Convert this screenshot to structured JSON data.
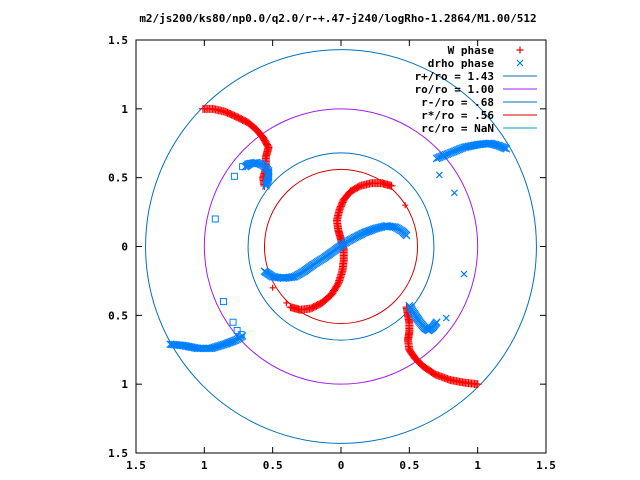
{
  "chart_data": {
    "type": "scatter",
    "title": "m2/js200/ks80/np0.0/q2.0/r-+.47-j240/logRho-1.2864/M1.00/512",
    "xlabel": "",
    "ylabel": "",
    "xlim": [
      -1.5,
      1.5
    ],
    "ylim": [
      -1.5,
      1.5
    ],
    "x_ticks": [
      "1.5",
      "1",
      "0.5",
      "0",
      "0.5",
      "1",
      "1.5"
    ],
    "y_ticks": [
      "1.5",
      "1",
      "0.5",
      "0",
      "0.5",
      "1",
      "1.5"
    ],
    "x_tick_values": [
      -1.5,
      -1,
      -0.5,
      0,
      0.5,
      1,
      1.5
    ],
    "y_tick_values": [
      1.5,
      1,
      0.5,
      0,
      -0.5,
      -1,
      -1.5
    ],
    "grid": false,
    "legend_position": "top-right",
    "series": [
      {
        "name": "W phase",
        "kind": "points",
        "marker": "plus",
        "color": "#ff0000",
        "arms": [
          {
            "x": [
              -1.01,
              -0.94,
              -0.85,
              -0.76,
              -0.68,
              -0.62,
              -0.57,
              -0.53,
              -0.55,
              -0.55,
              -0.57,
              -0.56
            ],
            "y": [
              1.0,
              1.0,
              0.98,
              0.94,
              0.9,
              0.85,
              0.79,
              0.72,
              0.65,
              0.56,
              0.5,
              0.44
            ]
          },
          {
            "x": [
              1.0,
              0.91,
              0.8,
              0.69,
              0.6,
              0.54,
              0.5,
              0.49,
              0.5,
              0.5,
              0.49,
              0.48
            ],
            "y": [
              -1.0,
              -0.99,
              -0.97,
              -0.93,
              -0.87,
              -0.81,
              -0.75,
              -0.68,
              -0.62,
              -0.55,
              -0.5,
              -0.44
            ]
          },
          {
            "x": [
              0.37,
              0.3,
              0.22,
              0.14,
              0.07,
              0.02,
              -0.01,
              -0.03,
              -0.02,
              0.0,
              0.02,
              0.02,
              0.01,
              -0.02,
              -0.07,
              -0.14,
              -0.22,
              -0.3,
              -0.37
            ],
            "y": [
              0.44,
              0.46,
              0.46,
              0.44,
              0.4,
              0.34,
              0.27,
              0.19,
              0.12,
              0.05,
              -0.02,
              -0.1,
              -0.18,
              -0.27,
              -0.35,
              -0.41,
              -0.45,
              -0.46,
              -0.44
            ]
          }
        ],
        "outliers": {
          "x": [
            0.47,
            -0.5,
            -0.4
          ],
          "y": [
            0.3,
            -0.3,
            -0.41
          ]
        }
      },
      {
        "name": "drho phase",
        "kind": "points",
        "marker": "x",
        "color": "#0080ff",
        "arms": [
          {
            "x": [
              0.7,
              0.8,
              0.9,
              1.0,
              1.09,
              1.16,
              1.21
            ],
            "y": [
              0.64,
              0.68,
              0.72,
              0.74,
              0.75,
              0.73,
              0.71
            ]
          },
          {
            "x": [
              -1.25,
              -1.15,
              -1.05,
              -0.95,
              -0.85,
              -0.77,
              -0.72
            ],
            "y": [
              -0.71,
              -0.72,
              -0.74,
              -0.74,
              -0.71,
              -0.68,
              -0.65
            ]
          },
          {
            "x": [
              0.5,
              0.53,
              0.57,
              0.61,
              0.64,
              0.67,
              0.7
            ],
            "y": [
              -0.43,
              -0.48,
              -0.54,
              -0.59,
              -0.61,
              -0.59,
              -0.55
            ]
          },
          {
            "x": [
              -0.55,
              -0.53,
              -0.53,
              -0.57,
              -0.62,
              -0.67,
              -0.7
            ],
            "y": [
              0.44,
              0.5,
              0.55,
              0.59,
              0.61,
              0.6,
              0.58
            ]
          },
          {
            "x": [
              -0.56,
              -0.5,
              -0.42,
              -0.34,
              -0.27,
              -0.2,
              -0.12,
              -0.05,
              0.02,
              0.09,
              0.17,
              0.25,
              0.33,
              0.4,
              0.45,
              0.48
            ],
            "y": [
              -0.18,
              -0.22,
              -0.23,
              -0.22,
              -0.18,
              -0.13,
              -0.08,
              -0.03,
              0.02,
              0.06,
              0.1,
              0.13,
              0.15,
              0.14,
              0.11,
              0.08
            ]
          }
        ],
        "outliers": {
          "x": [
            0.72,
            0.83,
            0.9,
            0.77
          ],
          "y": [
            0.52,
            0.39,
            -0.2,
            -0.52
          ]
        }
      },
      {
        "name": "",
        "kind": "points",
        "marker": "open-square",
        "color": "#0080ff",
        "x": [
          -0.92,
          -0.78,
          -0.72,
          -0.68,
          -0.86,
          -0.79,
          -0.76,
          -0.73
        ],
        "y": [
          0.2,
          0.51,
          0.58,
          0.6,
          -0.4,
          -0.55,
          -0.61,
          -0.64
        ]
      },
      {
        "name": "r+/ro = 1.43",
        "kind": "circle",
        "radius": 1.43,
        "color": "#0070c0"
      },
      {
        "name": "ro/ro = 1.00",
        "kind": "circle",
        "radius": 1.0,
        "color": "#a020f0"
      },
      {
        "name": "r-/ro = .68",
        "kind": "circle",
        "radius": 0.68,
        "color": "#0070c0"
      },
      {
        "name": "r*/ro = .56",
        "kind": "circle",
        "radius": 0.56,
        "color": "#d00000"
      },
      {
        "name": "rc/ro = NaN",
        "kind": "circle",
        "radius": null,
        "color": "#00a0c0"
      }
    ]
  }
}
